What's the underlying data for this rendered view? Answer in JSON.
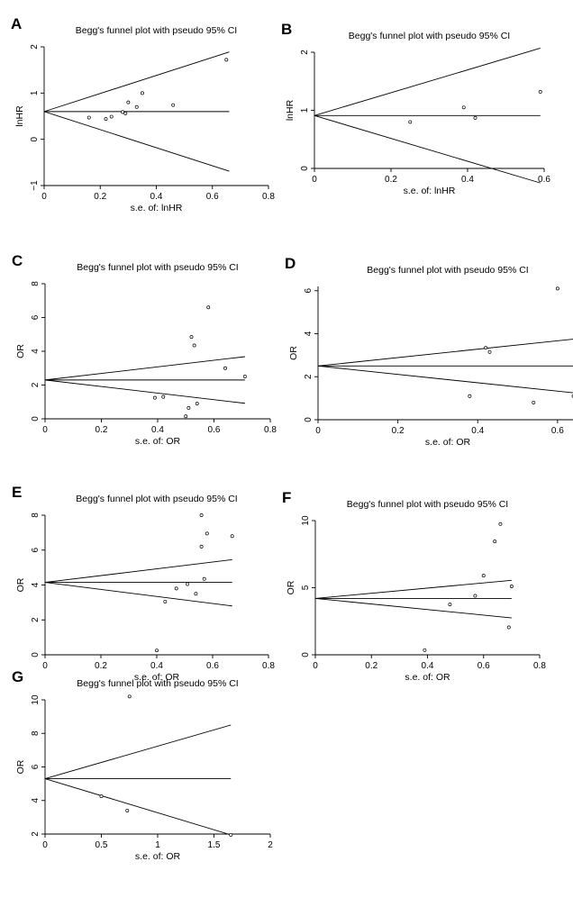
{
  "chart_data": [
    {
      "panel": "A",
      "type": "scatter",
      "title": "Begg's funnel plot with pseudo 95% CI",
      "xlabel": "s.e. of: lnHR",
      "ylabel": "lnHR",
      "xlim": [
        0,
        0.8
      ],
      "ylim": [
        -1,
        2
      ],
      "xticks": [
        0,
        0.2,
        0.4,
        0.6,
        0.8
      ],
      "yticks": [
        -1,
        0,
        1,
        2
      ],
      "xtick_labels": [
        "0",
        "0.2",
        "0.4",
        "0.6",
        "0.8"
      ],
      "ytick_labels": [
        "−1",
        "0",
        "1",
        "2"
      ],
      "pooled": 0.6,
      "line_xmax": 0.66,
      "ci_upper_end": 1.89,
      "ci_lower_end": -0.69,
      "points": [
        [
          0.16,
          0.47
        ],
        [
          0.22,
          0.44
        ],
        [
          0.24,
          0.49
        ],
        [
          0.28,
          0.59
        ],
        [
          0.29,
          0.56
        ],
        [
          0.3,
          0.8
        ],
        [
          0.33,
          0.7
        ],
        [
          0.35,
          1.0
        ],
        [
          0.46,
          0.74
        ],
        [
          0.65,
          1.72
        ]
      ]
    },
    {
      "panel": "B",
      "type": "scatter",
      "title": "Begg's funnel plot with pseudo 95% CI",
      "xlabel": "s.e. of: lnHR",
      "ylabel": "lnHR",
      "xlim": [
        0,
        0.6
      ],
      "ylim": [
        0,
        2
      ],
      "xticks": [
        0,
        0.2,
        0.4,
        0.6
      ],
      "yticks": [
        0,
        1,
        2
      ],
      "xtick_labels": [
        "0",
        "0.2",
        "0.4",
        "0.6"
      ],
      "ytick_labels": [
        "0",
        "1",
        "2"
      ],
      "pooled": 0.91,
      "line_xmax": 0.59,
      "ci_upper_end": 2.07,
      "ci_lower_end": -0.25,
      "points": [
        [
          0.25,
          0.8
        ],
        [
          0.39,
          1.05
        ],
        [
          0.42,
          0.87
        ],
        [
          0.59,
          1.32
        ]
      ]
    },
    {
      "panel": "C",
      "type": "scatter",
      "title": "Begg's funnel plot with pseudo 95% CI",
      "xlabel": "s.e. of: OR",
      "ylabel": "OR",
      "xlim": [
        0,
        0.8
      ],
      "ylim": [
        0,
        8
      ],
      "xticks": [
        0,
        0.2,
        0.4,
        0.6,
        0.8
      ],
      "yticks": [
        0,
        2,
        4,
        6,
        8
      ],
      "xtick_labels": [
        "0",
        "0.2",
        "0.4",
        "0.6",
        "0.8"
      ],
      "ytick_labels": [
        "0",
        "2",
        "4",
        "6",
        "8"
      ],
      "pooled": 2.3,
      "line_xmax": 0.71,
      "ci_upper_end": 3.68,
      "ci_lower_end": 0.92,
      "points": [
        [
          0.39,
          1.25
        ],
        [
          0.42,
          1.3
        ],
        [
          0.5,
          0.15
        ],
        [
          0.51,
          0.65
        ],
        [
          0.52,
          4.85
        ],
        [
          0.53,
          4.35
        ],
        [
          0.54,
          0.9
        ],
        [
          0.58,
          6.6
        ],
        [
          0.64,
          3.0
        ],
        [
          0.71,
          2.5
        ]
      ]
    },
    {
      "panel": "D",
      "type": "scatter",
      "title": "Begg's funnel plot with pseudo 95% CI",
      "xlabel": "s.e. of: OR",
      "ylabel": "OR",
      "xlim": [
        0,
        0.65
      ],
      "ylim": [
        0,
        6.2
      ],
      "xticks": [
        0,
        0.2,
        0.4,
        0.6
      ],
      "yticks": [
        0,
        2,
        4,
        6
      ],
      "xtick_labels": [
        "0",
        "0.2",
        "0.4",
        "0.6"
      ],
      "ytick_labels": [
        "0",
        "2",
        "4",
        "6"
      ],
      "pooled": 2.5,
      "line_xmax": 0.64,
      "ci_upper_end": 3.75,
      "ci_lower_end": 1.25,
      "points": [
        [
          0.38,
          1.1
        ],
        [
          0.42,
          3.35
        ],
        [
          0.43,
          3.15
        ],
        [
          0.54,
          0.8
        ],
        [
          0.6,
          6.1
        ],
        [
          0.64,
          1.1
        ]
      ]
    },
    {
      "panel": "E",
      "type": "scatter",
      "title": "Begg's funnel plot with pseudo 95% CI",
      "xlabel": "s.e. of: OR",
      "ylabel": "OR",
      "xlim": [
        0,
        0.8
      ],
      "ylim": [
        0,
        8
      ],
      "xticks": [
        0,
        0.2,
        0.4,
        0.6,
        0.8
      ],
      "yticks": [
        0,
        2,
        4,
        6,
        8
      ],
      "xtick_labels": [
        "0",
        "0.2",
        "0.4",
        "0.6",
        "0.8"
      ],
      "ytick_labels": [
        "0",
        "2",
        "4",
        "6",
        "8"
      ],
      "pooled": 4.15,
      "line_xmax": 0.67,
      "ci_upper_end": 5.45,
      "ci_lower_end": 2.8,
      "points": [
        [
          0.4,
          0.25
        ],
        [
          0.43,
          3.05
        ],
        [
          0.47,
          3.8
        ],
        [
          0.51,
          4.05
        ],
        [
          0.54,
          3.5
        ],
        [
          0.56,
          6.2
        ],
        [
          0.56,
          8.0
        ],
        [
          0.57,
          4.35
        ],
        [
          0.58,
          6.95
        ],
        [
          0.67,
          6.8
        ]
      ]
    },
    {
      "panel": "F",
      "type": "scatter",
      "title": "Begg's funnel plot with pseudo 95% CI",
      "xlabel": "s.e. of: OR",
      "ylabel": "OR",
      "xlim": [
        0,
        0.8
      ],
      "ylim": [
        0,
        10
      ],
      "xticks": [
        0,
        0.2,
        0.4,
        0.6,
        0.8
      ],
      "yticks": [
        0,
        5,
        10
      ],
      "xtick_labels": [
        "0",
        "0.2",
        "0.4",
        "0.6",
        "0.8"
      ],
      "ytick_labels": [
        "0",
        "5",
        "10"
      ],
      "pooled": 4.2,
      "line_xmax": 0.7,
      "ci_upper_end": 5.55,
      "ci_lower_end": 2.75,
      "points": [
        [
          0.39,
          0.35
        ],
        [
          0.48,
          3.75
        ],
        [
          0.57,
          4.4
        ],
        [
          0.6,
          5.9
        ],
        [
          0.64,
          8.45
        ],
        [
          0.66,
          9.75
        ],
        [
          0.69,
          2.05
        ],
        [
          0.7,
          5.1
        ]
      ]
    },
    {
      "panel": "G",
      "type": "scatter",
      "title": "Begg's funnel plot with pseudo 95% CI",
      "xlabel": "s.e. of: OR",
      "ylabel": "OR",
      "xlim": [
        0,
        2
      ],
      "ylim": [
        2,
        10
      ],
      "xticks": [
        0,
        0.5,
        1,
        1.5,
        2
      ],
      "yticks": [
        2,
        4,
        6,
        8,
        10
      ],
      "xtick_labels": [
        "0",
        "0.5",
        "1",
        "1.5",
        "2"
      ],
      "ytick_labels": [
        "2",
        "4",
        "6",
        "8",
        "10"
      ],
      "pooled": 5.3,
      "line_xmax": 1.65,
      "ci_upper_end": 8.5,
      "ci_lower_end": 1.95,
      "points": [
        [
          0.5,
          4.25
        ],
        [
          0.73,
          3.4
        ],
        [
          0.75,
          10.2
        ],
        [
          1.65,
          1.95
        ]
      ]
    }
  ]
}
